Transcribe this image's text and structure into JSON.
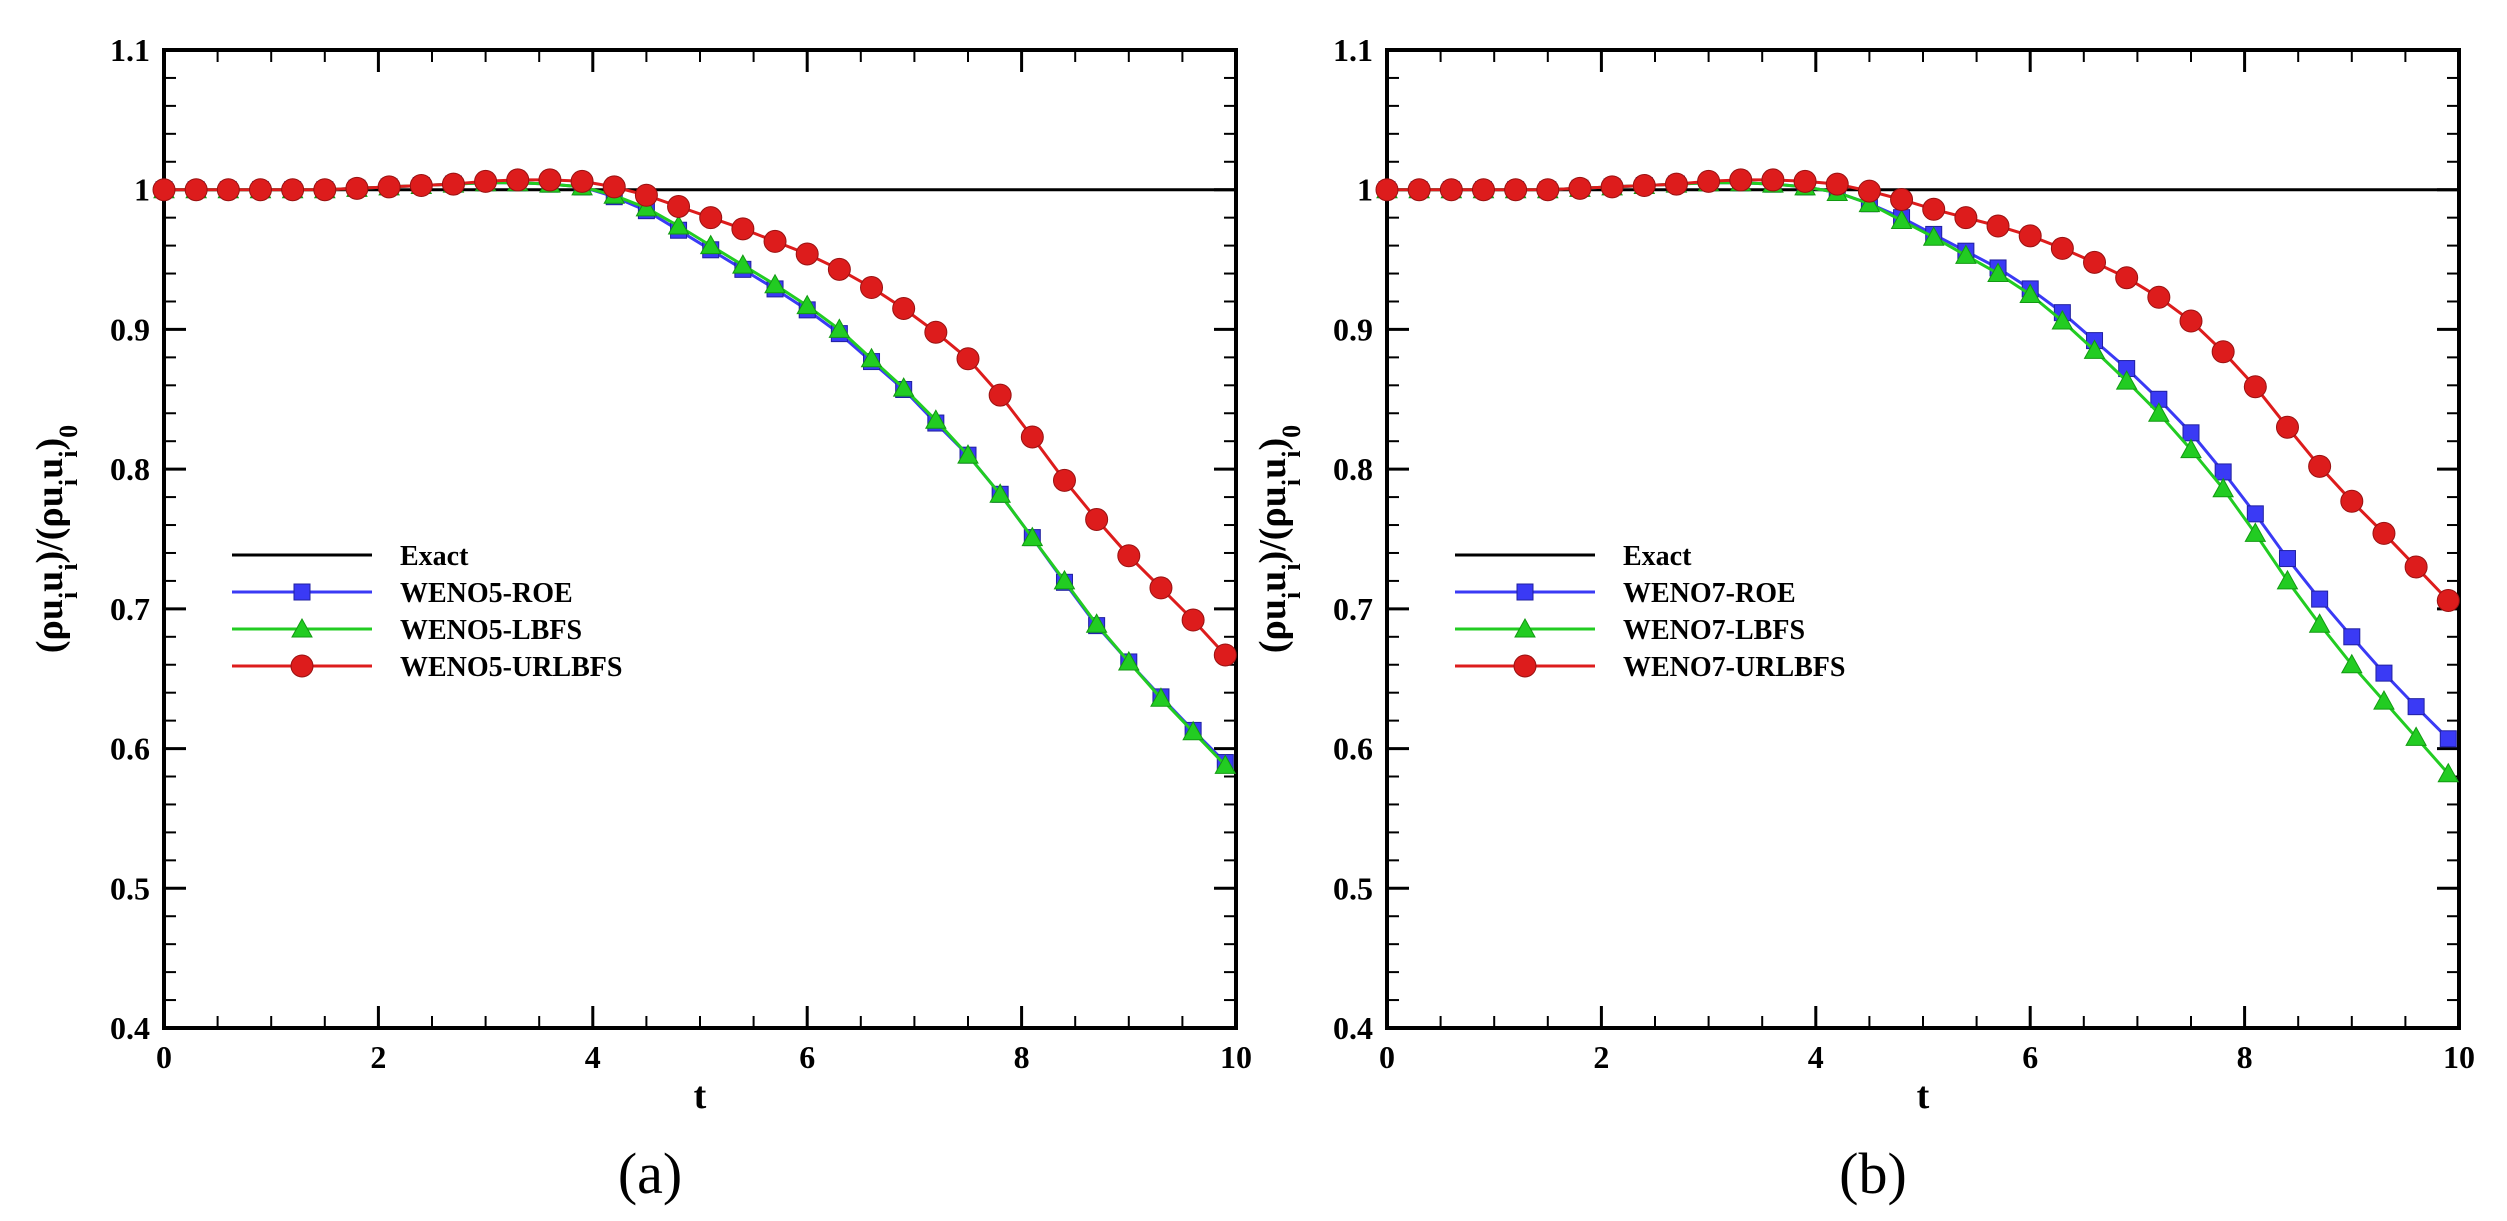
{
  "chart_data": [
    {
      "type": "line",
      "panel_label": "(a)",
      "xlabel": "t",
      "ylabel": "(ρu_i u_i)/(ρu_i u_i)_0",
      "xlim": [
        0,
        10
      ],
      "ylim": [
        0.4,
        1.1
      ],
      "xticks": [
        0,
        2,
        4,
        6,
        8,
        10
      ],
      "xtick_labels": [
        "0",
        "2",
        "4",
        "6",
        "8",
        "10"
      ],
      "yticks": [
        0.4,
        0.5,
        0.6,
        0.7,
        0.8,
        0.9,
        1.0,
        1.1
      ],
      "ytick_labels": [
        "0.4",
        "0.5",
        "0.6",
        "0.7",
        "0.8",
        "0.9",
        "1",
        "1.1"
      ],
      "grid": false,
      "legend_position": "center-left",
      "series": [
        {
          "name": "Exact",
          "color": "#000000",
          "marker": "none",
          "x": [
            0,
            10
          ],
          "y": [
            1.0,
            1.0
          ]
        },
        {
          "name": "WENO5-ROE",
          "color": "#3a3af5",
          "marker": "square",
          "x": [
            0,
            0.3,
            0.6,
            0.9,
            1.2,
            1.5,
            1.8,
            2.1,
            2.4,
            2.7,
            3.0,
            3.3,
            3.6,
            3.9,
            4.2,
            4.5,
            4.8,
            5.1,
            5.4,
            5.7,
            6.0,
            6.3,
            6.6,
            6.9,
            7.2,
            7.5,
            7.8,
            8.1,
            8.4,
            8.7,
            9.0,
            9.3,
            9.6,
            9.9
          ],
          "y": [
            1.0,
            1.0,
            1.0,
            1.0,
            1.0,
            1.0,
            1.001,
            1.002,
            1.003,
            1.004,
            1.005,
            1.005,
            1.004,
            1.002,
            0.995,
            0.985,
            0.971,
            0.957,
            0.943,
            0.929,
            0.914,
            0.897,
            0.877,
            0.857,
            0.833,
            0.81,
            0.782,
            0.751,
            0.719,
            0.688,
            0.662,
            0.637,
            0.613,
            0.59
          ]
        },
        {
          "name": "WENO5-LBFS",
          "color": "#22cc22",
          "marker": "triangle",
          "x": [
            0,
            0.3,
            0.6,
            0.9,
            1.2,
            1.5,
            1.8,
            2.1,
            2.4,
            2.7,
            3.0,
            3.3,
            3.6,
            3.9,
            4.2,
            4.5,
            4.8,
            5.1,
            5.4,
            5.7,
            6.0,
            6.3,
            6.6,
            6.9,
            7.2,
            7.5,
            7.8,
            8.1,
            8.4,
            8.7,
            9.0,
            9.3,
            9.6,
            9.9
          ],
          "y": [
            1.0,
            1.0,
            1.0,
            1.0,
            1.0,
            1.0,
            1.001,
            1.002,
            1.003,
            1.004,
            1.005,
            1.005,
            1.004,
            1.002,
            0.996,
            0.987,
            0.974,
            0.96,
            0.946,
            0.932,
            0.917,
            0.9,
            0.879,
            0.858,
            0.835,
            0.81,
            0.782,
            0.751,
            0.72,
            0.689,
            0.662,
            0.636,
            0.612,
            0.588
          ]
        },
        {
          "name": "WENO5-URLBFS",
          "color": "#dd1c1c",
          "marker": "circle",
          "x": [
            0,
            0.3,
            0.6,
            0.9,
            1.2,
            1.5,
            1.8,
            2.1,
            2.4,
            2.7,
            3.0,
            3.3,
            3.6,
            3.9,
            4.2,
            4.5,
            4.8,
            5.1,
            5.4,
            5.7,
            6.0,
            6.3,
            6.6,
            6.9,
            7.2,
            7.5,
            7.8,
            8.1,
            8.4,
            8.7,
            9.0,
            9.3,
            9.6,
            9.9
          ],
          "y": [
            1.0,
            1.0,
            1.0,
            1.0,
            1.0,
            1.0,
            1.001,
            1.002,
            1.003,
            1.004,
            1.006,
            1.007,
            1.007,
            1.006,
            1.002,
            0.996,
            0.988,
            0.98,
            0.972,
            0.963,
            0.954,
            0.943,
            0.93,
            0.915,
            0.898,
            0.879,
            0.853,
            0.823,
            0.792,
            0.764,
            0.738,
            0.715,
            0.692,
            0.667
          ]
        }
      ]
    },
    {
      "type": "line",
      "panel_label": "(b)",
      "xlabel": "t",
      "ylabel": "(ρu_i u_i)/(ρu_i u_i)_0",
      "xlim": [
        0,
        10
      ],
      "ylim": [
        0.4,
        1.1
      ],
      "xticks": [
        0,
        2,
        4,
        6,
        8,
        10
      ],
      "xtick_labels": [
        "0",
        "2",
        "4",
        "6",
        "8",
        "10"
      ],
      "yticks": [
        0.4,
        0.5,
        0.6,
        0.7,
        0.8,
        0.9,
        1.0,
        1.1
      ],
      "ytick_labels": [
        "0.4",
        "0.5",
        "0.6",
        "0.7",
        "0.8",
        "0.9",
        "1",
        "1.1"
      ],
      "grid": false,
      "legend_position": "center-left",
      "series": [
        {
          "name": "Exact",
          "color": "#000000",
          "marker": "none",
          "x": [
            0,
            10
          ],
          "y": [
            1.0,
            1.0
          ]
        },
        {
          "name": "WENO7-ROE",
          "color": "#3a3af5",
          "marker": "square",
          "x": [
            0,
            0.3,
            0.6,
            0.9,
            1.2,
            1.5,
            1.8,
            2.1,
            2.4,
            2.7,
            3.0,
            3.3,
            3.6,
            3.9,
            4.2,
            4.5,
            4.8,
            5.1,
            5.4,
            5.7,
            6.0,
            6.3,
            6.6,
            6.9,
            7.2,
            7.5,
            7.8,
            8.1,
            8.4,
            8.7,
            9.0,
            9.3,
            9.6,
            9.9
          ],
          "y": [
            1.0,
            1.0,
            1.0,
            1.0,
            1.0,
            1.0,
            1.001,
            1.002,
            1.003,
            1.004,
            1.005,
            1.005,
            1.004,
            1.002,
            0.998,
            0.99,
            0.98,
            0.968,
            0.956,
            0.944,
            0.929,
            0.912,
            0.892,
            0.872,
            0.85,
            0.826,
            0.798,
            0.768,
            0.736,
            0.707,
            0.68,
            0.654,
            0.63,
            0.607
          ]
        },
        {
          "name": "WENO7-LBFS",
          "color": "#22cc22",
          "marker": "triangle",
          "x": [
            0,
            0.3,
            0.6,
            0.9,
            1.2,
            1.5,
            1.8,
            2.1,
            2.4,
            2.7,
            3.0,
            3.3,
            3.6,
            3.9,
            4.2,
            4.5,
            4.8,
            5.1,
            5.4,
            5.7,
            6.0,
            6.3,
            6.6,
            6.9,
            7.2,
            7.5,
            7.8,
            8.1,
            8.4,
            8.7,
            9.0,
            9.3,
            9.6,
            9.9
          ],
          "y": [
            1.0,
            1.0,
            1.0,
            1.0,
            1.0,
            1.0,
            1.001,
            1.002,
            1.003,
            1.004,
            1.005,
            1.005,
            1.004,
            1.002,
            0.998,
            0.99,
            0.978,
            0.966,
            0.953,
            0.94,
            0.925,
            0.906,
            0.885,
            0.863,
            0.84,
            0.814,
            0.786,
            0.754,
            0.72,
            0.689,
            0.66,
            0.634,
            0.608,
            0.582
          ]
        },
        {
          "name": "WENO7-URLBFS",
          "color": "#dd1c1c",
          "marker": "circle",
          "x": [
            0,
            0.3,
            0.6,
            0.9,
            1.2,
            1.5,
            1.8,
            2.1,
            2.4,
            2.7,
            3.0,
            3.3,
            3.6,
            3.9,
            4.2,
            4.5,
            4.8,
            5.1,
            5.4,
            5.7,
            6.0,
            6.3,
            6.6,
            6.9,
            7.2,
            7.5,
            7.8,
            8.1,
            8.4,
            8.7,
            9.0,
            9.3,
            9.6,
            9.9
          ],
          "y": [
            1.0,
            1.0,
            1.0,
            1.0,
            1.0,
            1.0,
            1.001,
            1.002,
            1.003,
            1.004,
            1.006,
            1.007,
            1.007,
            1.006,
            1.004,
            0.999,
            0.993,
            0.986,
            0.98,
            0.974,
            0.967,
            0.958,
            0.948,
            0.937,
            0.923,
            0.906,
            0.884,
            0.859,
            0.83,
            0.802,
            0.777,
            0.754,
            0.73,
            0.706
          ]
        }
      ]
    }
  ]
}
